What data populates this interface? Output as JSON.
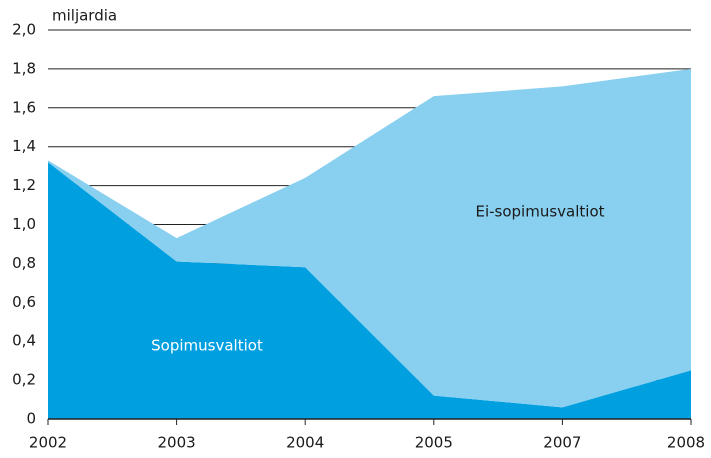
{
  "chart_data": {
    "type": "stacked_area",
    "y_label": "miljardia",
    "categories": [
      "2002",
      "2003",
      "2004",
      "2005",
      "2007",
      "2008"
    ],
    "series": [
      {
        "name": "Sopimusvaltiot",
        "color": "#009fe0",
        "values": [
          1.32,
          0.81,
          0.78,
          0.12,
          0.06,
          0.25
        ]
      },
      {
        "name": "Ei-sopimusvaltiot",
        "color": "#88cff0",
        "values": [
          0.01,
          0.12,
          0.46,
          1.54,
          1.65,
          1.55
        ]
      }
    ],
    "ylim": [
      0,
      2.0
    ],
    "yticks": [
      0,
      {
        "value": 0.2,
        "label": "0,2"
      },
      {
        "value": 0.4,
        "label": "0,4"
      },
      {
        "value": 0.6,
        "label": "0,6"
      },
      {
        "value": 0.8,
        "label": "0,8"
      },
      {
        "value": 1.0,
        "label": "1,0"
      },
      {
        "value": 1.2,
        "label": "1,2"
      },
      {
        "value": 1.4,
        "label": "1,4"
      },
      {
        "value": 1.6,
        "label": "1,6"
      },
      {
        "value": 1.8,
        "label": "1,8"
      },
      {
        "value": 2.0,
        "label": "2,0"
      }
    ],
    "grid": true
  }
}
